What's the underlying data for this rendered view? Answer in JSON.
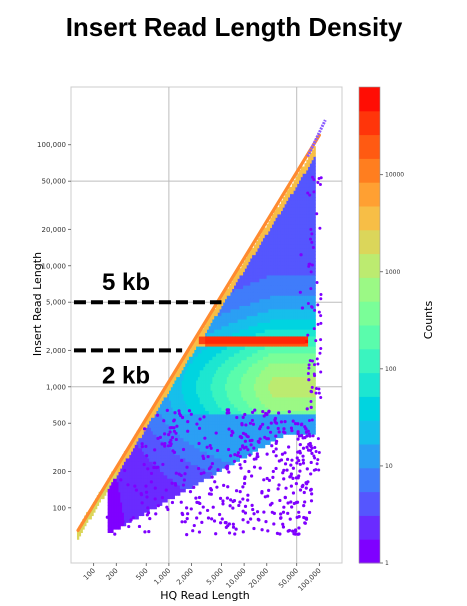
{
  "chart_data": {
    "type": "heatmap",
    "title": "Insert Read Length Density",
    "xlabel": "HQ Read Length",
    "ylabel": "Insert Read Length",
    "x_scale": "log",
    "y_scale": "log",
    "xlim": [
      50,
      200000
    ],
    "ylim": [
      35,
      300000
    ],
    "x_ticks": [
      {
        "value": 100,
        "label": "100"
      },
      {
        "value": 200,
        "label": "200"
      },
      {
        "value": 500,
        "label": "500"
      },
      {
        "value": 1000,
        "label": "1,000"
      },
      {
        "value": 2000,
        "label": "2,000"
      },
      {
        "value": 5000,
        "label": "5,000"
      },
      {
        "value": 10000,
        "label": "10,000"
      },
      {
        "value": 20000,
        "label": "20,000"
      },
      {
        "value": 50000,
        "label": "50,000"
      },
      {
        "value": 100000,
        "label": "100,000"
      }
    ],
    "y_ticks": [
      {
        "value": 100,
        "label": "100"
      },
      {
        "value": 200,
        "label": "200"
      },
      {
        "value": 500,
        "label": "500"
      },
      {
        "value": 1000,
        "label": "1,000"
      },
      {
        "value": 2000,
        "label": "2,000"
      },
      {
        "value": 5000,
        "label": "5,000"
      },
      {
        "value": 10000,
        "label": "10,000"
      },
      {
        "value": 20000,
        "label": "20,000"
      },
      {
        "value": 50000,
        "label": "50,000"
      },
      {
        "value": 100000,
        "label": "100,000"
      }
    ],
    "grid": true,
    "colorbar": {
      "label": "Counts",
      "scale": "log",
      "range": [
        1,
        80000
      ],
      "ticks": [
        {
          "value": 1,
          "label": "1"
        },
        {
          "value": 10,
          "label": "10"
        },
        {
          "value": 100,
          "label": "100"
        },
        {
          "value": 1000,
          "label": "1000"
        },
        {
          "value": 10000,
          "label": "10000"
        }
      ],
      "colors": [
        "#7f00ff",
        "#6a2bff",
        "#5556fe",
        "#407cfa",
        "#2b9ff4",
        "#16bfeb",
        "#00d4e0",
        "#1de6d1",
        "#3af4bf",
        "#5afcac",
        "#7afe98",
        "#9bf985",
        "#bceb70",
        "#dbd65a",
        "#f7be46",
        "#ffa032",
        "#ff7e1f",
        "#ff5a12",
        "#ff350a",
        "#ff0d04"
      ]
    },
    "regions": {
      "diagonal_ridge": {
        "x_start": 60,
        "x_end": 120000,
        "description_counts": 4000
      },
      "main_density": {
        "x_range": [
          150,
          70000
        ],
        "y_upper": "diagonal",
        "y_lower": 60
      },
      "plateau": {
        "x_range": [
          3000,
          70000
        ],
        "y": 2400,
        "counts": 60000
      }
    },
    "annotations": [
      {
        "text": "5 kb",
        "y": 5000,
        "x_start": 60,
        "x_end": 5000
      },
      {
        "text": "2 kb",
        "y": 2000,
        "x_start": 60,
        "x_end": 1500
      }
    ]
  }
}
